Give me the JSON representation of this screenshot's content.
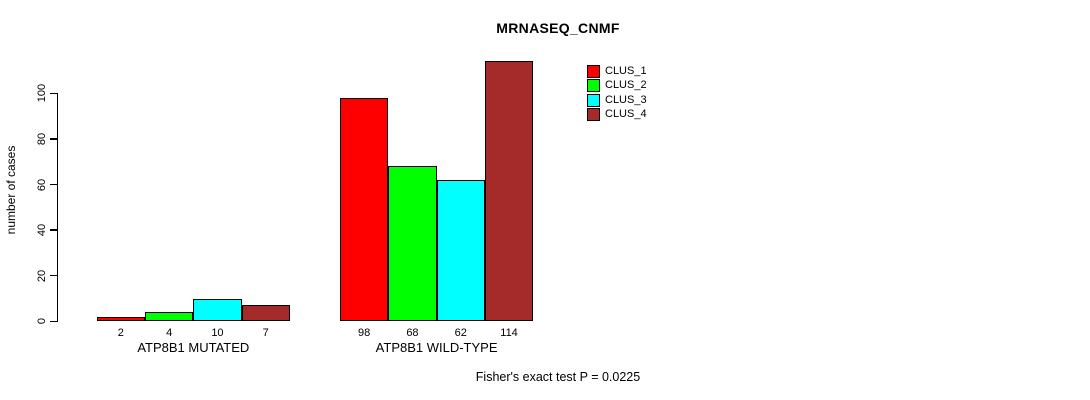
{
  "chart_data": {
    "type": "bar",
    "title": "MRNASEQ_CNMF",
    "ylabel": "number of cases",
    "xlabel": "",
    "categories": [
      "ATP8B1 MUTATED",
      "ATP8B1 WILD-TYPE"
    ],
    "series": [
      {
        "name": "CLUS_1",
        "color": "#FF0000",
        "values": [
          2,
          98
        ]
      },
      {
        "name": "CLUS_2",
        "color": "#00FF00",
        "values": [
          4,
          68
        ]
      },
      {
        "name": "CLUS_3",
        "color": "#00FFFF",
        "values": [
          10,
          62
        ]
      },
      {
        "name": "CLUS_4",
        "color": "#A52A2A",
        "values": [
          7,
          114
        ]
      }
    ],
    "yticks": [
      0,
      20,
      40,
      60,
      80,
      100
    ],
    "ylim": [
      0,
      115
    ],
    "bar_value_labels": true,
    "grid": false,
    "legend_position": "top-right",
    "annotation": "Fisher's exact test P = 0.0225"
  }
}
